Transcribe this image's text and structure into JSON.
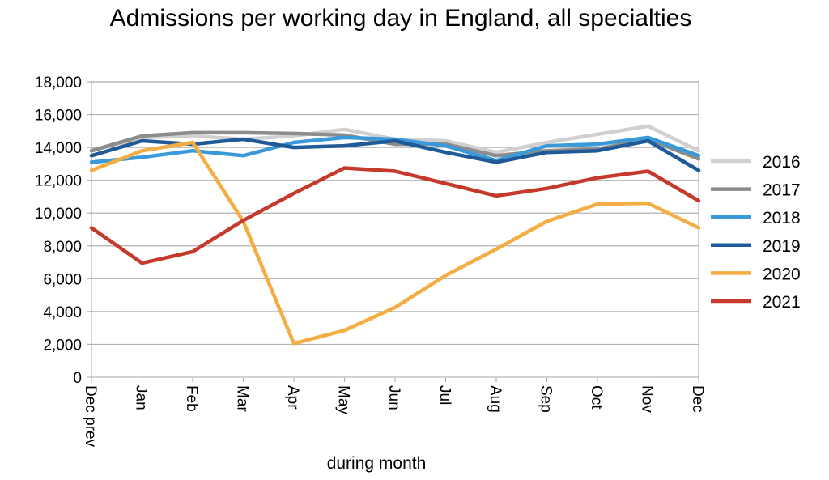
{
  "chart_data": {
    "type": "line",
    "title": "Admissions per working day in England, all specialties",
    "xlabel": "during  month",
    "ylabel": "",
    "ylim": [
      0,
      18000
    ],
    "yticks": [
      0,
      2000,
      4000,
      6000,
      8000,
      10000,
      12000,
      14000,
      16000,
      18000
    ],
    "ytick_labels": [
      "0",
      "2,000",
      "4,000",
      "6,000",
      "8,000",
      "10,000",
      "12,000",
      "14,000",
      "16,000",
      "18,000"
    ],
    "categories": [
      "Dec prev",
      "Jan",
      "Feb",
      "Mar",
      "Apr",
      "May",
      "Jun",
      "Jul",
      "Aug",
      "Sep",
      "Oct",
      "Nov",
      "Dec"
    ],
    "grid": true,
    "legend_position": "right",
    "series": [
      {
        "name": "2016",
        "color": "#d0d0d0",
        "values": [
          13800,
          14600,
          14700,
          14500,
          14700,
          15100,
          14500,
          14400,
          13700,
          14300,
          14800,
          15300,
          13800
        ]
      },
      {
        "name": "2017",
        "color": "#8c8c8c",
        "values": [
          13800,
          14700,
          14900,
          14900,
          14850,
          14750,
          14200,
          14200,
          13500,
          13800,
          13900,
          14500,
          13300
        ]
      },
      {
        "name": "2018",
        "color": "#3a9ad9",
        "values": [
          13100,
          13400,
          13800,
          13500,
          14300,
          14600,
          14500,
          14100,
          13200,
          14100,
          14200,
          14600,
          13500
        ]
      },
      {
        "name": "2019",
        "color": "#1f5b99",
        "values": [
          13500,
          14400,
          14200,
          14500,
          14000,
          14100,
          14400,
          13700,
          13100,
          13700,
          13800,
          14400,
          12600
        ]
      },
      {
        "name": "2020",
        "color": "#f4ad42",
        "values": [
          12600,
          13800,
          14300,
          9500,
          2050,
          2850,
          4250,
          6200,
          7800,
          9500,
          10550,
          10600,
          9100
        ]
      },
      {
        "name": "2021",
        "color": "#c53a2c",
        "values": [
          9100,
          6950,
          7650,
          9550,
          11200,
          12750,
          12550,
          11800,
          11050,
          11500,
          12150,
          12550,
          10750
        ]
      }
    ]
  }
}
